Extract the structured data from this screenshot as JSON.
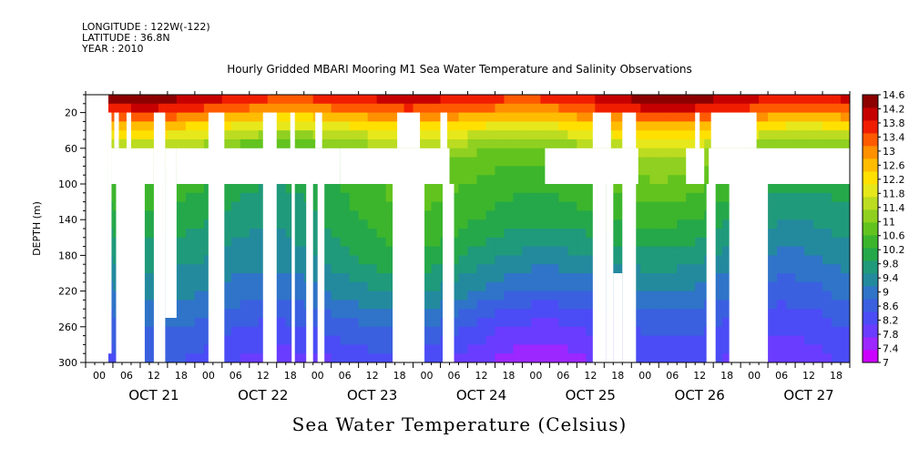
{
  "meta": {
    "longitude": "LONGITUDE : 122W(-122)",
    "latitude": "LATITUDE : 36.8N",
    "year": "YEAR : 2010"
  },
  "chart_data": {
    "type": "heatmap",
    "title": "Hourly Gridded MBARI Mooring M1 Sea Water Temperature and Salinity Observations",
    "variable_label": "Sea Water Temperature (Celsius)",
    "ylabel": "DEPTH (m)",
    "xlabel": "",
    "ylim": [
      300,
      0
    ],
    "y_ticks": [
      20,
      60,
      100,
      140,
      180,
      220,
      260,
      300
    ],
    "x_range_hours": [
      0,
      168
    ],
    "hour_tick_labels": [
      "00",
      "06",
      "12",
      "18"
    ],
    "day_labels": [
      "OCT 21",
      "OCT 22",
      "OCT 23",
      "OCT 24",
      "OCT 25",
      "OCT 26",
      "OCT 27"
    ],
    "colorbar": {
      "levels": [
        7,
        7.4,
        7.8,
        8.2,
        8.6,
        9,
        9.4,
        9.8,
        10.2,
        10.6,
        11,
        11.4,
        11.8,
        12.2,
        12.6,
        13,
        13.4,
        13.8,
        14.2,
        14.6
      ],
      "colors": [
        "#cc00ff",
        "#9c27ff",
        "#6a3cff",
        "#4b4cf5",
        "#3a60e0",
        "#2f74c8",
        "#238a9e",
        "#1f9a7a",
        "#25a84a",
        "#3cb52d",
        "#62c31f",
        "#8fd020",
        "#bbdc20",
        "#e6e81c",
        "#ffe000",
        "#ffbc00",
        "#ff9000",
        "#ff5a00",
        "#f01d00",
        "#c60000",
        "#8c0000"
      ],
      "min": 7,
      "max": 14.6
    },
    "depth_profile": [
      {
        "depth": 0,
        "temp": 14.4
      },
      {
        "depth": 10,
        "temp": 14.0
      },
      {
        "depth": 20,
        "temp": 13.4
      },
      {
        "depth": 35,
        "temp": 12.4
      },
      {
        "depth": 50,
        "temp": 11.6
      },
      {
        "depth": 65,
        "temp": 11.0
      },
      {
        "depth": 100,
        "temp": 10.4
      },
      {
        "depth": 140,
        "temp": 10.0
      },
      {
        "depth": 180,
        "temp": 9.5
      },
      {
        "depth": 220,
        "temp": 8.9
      },
      {
        "depth": 260,
        "temp": 8.2
      },
      {
        "depth": 300,
        "temp": 7.7
      }
    ],
    "missing_regions": [
      {
        "t0": 0,
        "t1": 5,
        "d0": 0,
        "d1": 300
      },
      {
        "t0": 5,
        "t1": 5.7,
        "d0": 20,
        "d1": 290
      },
      {
        "t0": 5.7,
        "t1": 15,
        "d0": 60,
        "d1": 100
      },
      {
        "t0": 6.3,
        "t1": 7.3,
        "d0": 20,
        "d1": 60
      },
      {
        "t0": 9,
        "t1": 10,
        "d0": 20,
        "d1": 60
      },
      {
        "t0": 6.7,
        "t1": 13,
        "d0": 100,
        "d1": 300
      },
      {
        "t0": 15,
        "t1": 17.5,
        "d0": 20,
        "d1": 300
      },
      {
        "t0": 17.5,
        "t1": 20,
        "d0": 60,
        "d1": 250
      },
      {
        "t0": 20,
        "t1": 56,
        "d0": 60,
        "d1": 100
      },
      {
        "t0": 27,
        "t1": 30.5,
        "d0": 20,
        "d1": 300
      },
      {
        "t0": 39,
        "t1": 42,
        "d0": 20,
        "d1": 300
      },
      {
        "t0": 45,
        "t1": 46,
        "d0": 20,
        "d1": 100
      },
      {
        "t0": 45.3,
        "t1": 46,
        "d0": 100,
        "d1": 300
      },
      {
        "t0": 48.5,
        "t1": 50,
        "d0": 100,
        "d1": 300
      },
      {
        "t0": 50.5,
        "t1": 52,
        "d0": 20,
        "d1": 60
      },
      {
        "t0": 51,
        "t1": 52.5,
        "d0": 100,
        "d1": 300
      },
      {
        "t0": 56,
        "t1": 80,
        "d0": 60,
        "d1": 100
      },
      {
        "t0": 68.5,
        "t1": 73.5,
        "d0": 20,
        "d1": 60
      },
      {
        "t0": 67.5,
        "t1": 74.5,
        "d0": 100,
        "d1": 300
      },
      {
        "t0": 78,
        "t1": 79.5,
        "d0": 20,
        "d1": 60
      },
      {
        "t0": 78.5,
        "t1": 81,
        "d0": 100,
        "d1": 300
      },
      {
        "t0": 101,
        "t1": 121.5,
        "d0": 60,
        "d1": 100
      },
      {
        "t0": 111.5,
        "t1": 115.5,
        "d0": 20,
        "d1": 60
      },
      {
        "t0": 111.5,
        "t1": 114.5,
        "d0": 100,
        "d1": 300
      },
      {
        "t0": 114.5,
        "t1": 116,
        "d0": 100,
        "d1": 200
      },
      {
        "t0": 114.5,
        "t1": 116,
        "d0": 200,
        "d1": 300
      },
      {
        "t0": 116,
        "t1": 118,
        "d0": 200,
        "d1": 300
      },
      {
        "t0": 118,
        "t1": 121,
        "d0": 20,
        "d1": 60
      },
      {
        "t0": 118,
        "t1": 121,
        "d0": 100,
        "d1": 300
      },
      {
        "t0": 132,
        "t1": 136,
        "d0": 60,
        "d1": 100
      },
      {
        "t0": 134,
        "t1": 135,
        "d0": 20,
        "d1": 60
      },
      {
        "t0": 137.5,
        "t1": 147.5,
        "d0": 20,
        "d1": 60
      },
      {
        "t0": 137,
        "t1": 168,
        "d0": 60,
        "d1": 100
      },
      {
        "t0": 136.5,
        "t1": 138.5,
        "d0": 100,
        "d1": 300
      },
      {
        "t0": 141.5,
        "t1": 150,
        "d0": 100,
        "d1": 300
      }
    ]
  }
}
